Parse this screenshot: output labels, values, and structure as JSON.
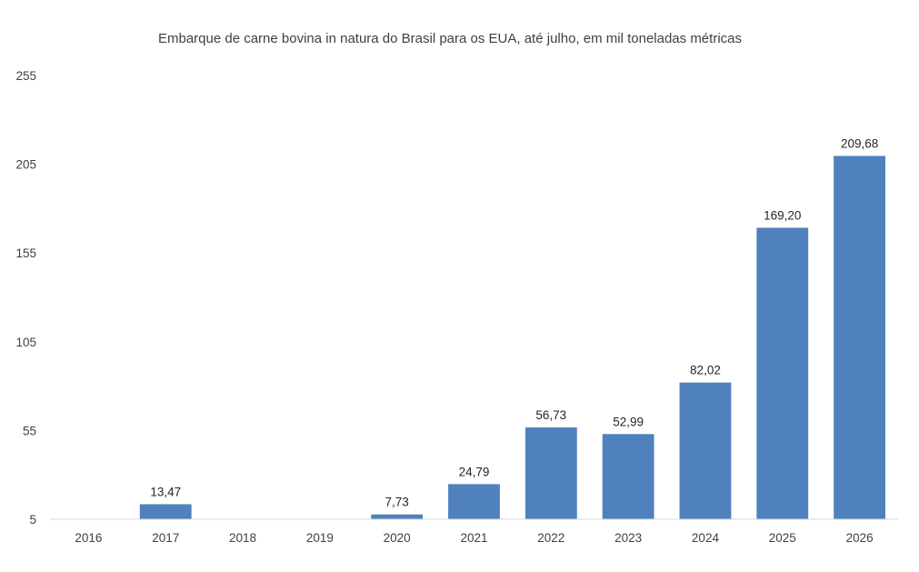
{
  "chart_data": {
    "type": "bar",
    "title": "Embarque de carne bovina in natura do Brasil para os EUA, até julho, em mil toneladas métricas",
    "xlabel": "",
    "ylabel": "",
    "categories": [
      "2016",
      "2017",
      "2018",
      "2019",
      "2020",
      "2021",
      "2022",
      "2023",
      "2024",
      "2025",
      "2026"
    ],
    "values": [
      null,
      13.47,
      null,
      null,
      7.73,
      24.79,
      56.73,
      52.99,
      82.02,
      169.2,
      209.68
    ],
    "data_labels": [
      "",
      "13,47",
      "",
      "",
      "7,73",
      "24,79",
      "56,73",
      "52,99",
      "82,02",
      "169,20",
      "209,68"
    ],
    "y_ticks": [
      "5",
      "55",
      "105",
      "155",
      "205",
      "255"
    ],
    "ylim": [
      5,
      255
    ],
    "bar_color": "#4f81bd",
    "grid": false,
    "legend": "none"
  }
}
